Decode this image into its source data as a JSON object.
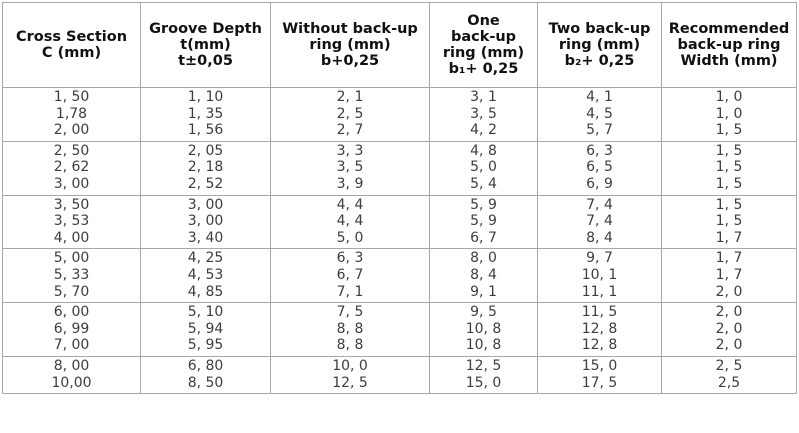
{
  "headers": [
    [
      "Cross Section",
      "C (mm)"
    ],
    [
      "Groove Depth",
      "t(mm)",
      "t±0,05"
    ],
    [
      "Without back-up",
      "ring (mm)",
      "b+0,25"
    ],
    [
      "One",
      "back-up",
      "ring (mm)",
      "b₁+ 0,25"
    ],
    [
      "Two back-up",
      "ring (mm)",
      "b₂+ 0,25"
    ],
    [
      "Recommended",
      "back-up ring",
      "Width (mm)"
    ]
  ],
  "groups": [
    [
      [
        "1, 50",
        "1, 10",
        "2, 1",
        "3, 1",
        "4, 1",
        "1, 0"
      ],
      [
        "1,78",
        "1, 35",
        "2, 5",
        "3, 5",
        "4, 5",
        "1, 0"
      ],
      [
        "2, 00",
        "1, 56",
        "2, 7",
        "4, 2",
        "5, 7",
        "1, 5"
      ]
    ],
    [
      [
        "2, 50",
        "2, 05",
        "3, 3",
        "4, 8",
        "6, 3",
        "1, 5"
      ],
      [
        "2, 62",
        "2, 18",
        "3, 5",
        "5, 0",
        "6, 5",
        "1, 5"
      ],
      [
        "3, 00",
        "2, 52",
        "3, 9",
        "5, 4",
        "6, 9",
        "1, 5"
      ]
    ],
    [
      [
        "3, 50",
        "3, 00",
        "4, 4",
        "5, 9",
        "7, 4",
        "1, 5"
      ],
      [
        "3, 53",
        "3, 00",
        "4, 4",
        "5, 9",
        "7, 4",
        "1, 5"
      ],
      [
        "4, 00",
        "3, 40",
        "5, 0",
        "6, 7",
        "8, 4",
        "1, 7"
      ]
    ],
    [
      [
        "5, 00",
        "4, 25",
        "6, 3",
        "8, 0",
        "9, 7",
        "1, 7"
      ],
      [
        "5, 33",
        "4, 53",
        "6, 7",
        "8, 4",
        "10, 1",
        "1, 7"
      ],
      [
        "5, 70",
        "4, 85",
        "7, 1",
        "9, 1",
        "11, 1",
        "2, 0"
      ]
    ],
    [
      [
        "6, 00",
        "5, 10",
        "7, 5",
        "9, 5",
        "11, 5",
        "2, 0"
      ],
      [
        "6, 99",
        "5, 94",
        "8, 8",
        "10, 8",
        "12, 8",
        "2, 0"
      ],
      [
        "7, 00",
        "5, 95",
        "8, 8",
        "10, 8",
        "12, 8",
        "2, 0"
      ]
    ],
    [
      [
        "8, 00",
        "6, 80",
        "10, 0",
        "12, 5",
        "15, 0",
        "2, 5"
      ],
      [
        "10,00",
        "8, 50",
        "12, 5",
        "15, 0",
        "17, 5",
        "2,5"
      ]
    ]
  ]
}
